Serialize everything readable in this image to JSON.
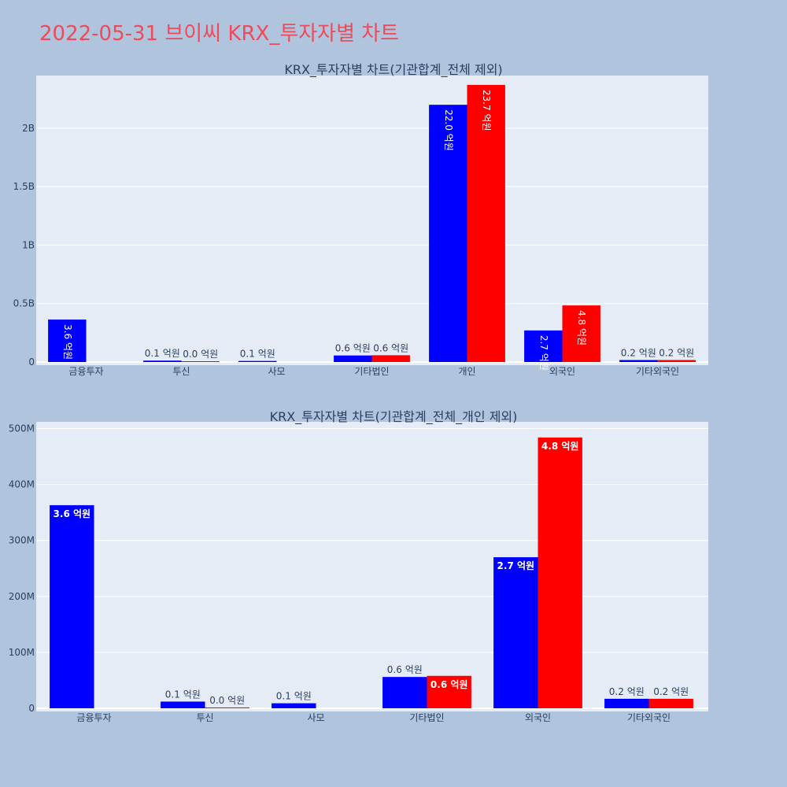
{
  "title": "2022-05-31 브이씨 KRX_투자자별 차트",
  "colors": {
    "buy": "#0000ff",
    "sell": "#ff0000",
    "plot_bg": "#e5ecf6",
    "page_bg": "#b0c4de",
    "title": "#ef4a5a"
  },
  "chart_data": [
    {
      "type": "bar",
      "title": "KRX_투자자별 차트(기관합계_전체 제외)",
      "categories": [
        "금융투자",
        "투신",
        "사모",
        "기타법인",
        "개인",
        "외국인",
        "기타외국인"
      ],
      "ylim": [
        0,
        2450000000
      ],
      "yticks": [
        {
          "value": 0,
          "label": "0"
        },
        {
          "value": 500000000,
          "label": "0.5B"
        },
        {
          "value": 1000000000,
          "label": "1B"
        },
        {
          "value": 1500000000,
          "label": "1.5B"
        },
        {
          "value": 2000000000,
          "label": "2B"
        }
      ],
      "series": [
        {
          "color": "#0000ff",
          "values": [
            363000000,
            12000000,
            9000000,
            56000000,
            2200000000,
            270000000,
            17000000
          ],
          "labels": [
            "3.6 억원",
            "0.1 억원",
            "0.1 억원",
            "0.6 억원",
            "22.0 억원",
            "2.7 억원",
            "0.2 억원"
          ]
        },
        {
          "color": "#ff0000",
          "values": [
            null,
            1500000,
            null,
            58000000,
            2370000000,
            484000000,
            17000000
          ],
          "labels": [
            "",
            "0.0 억원",
            "",
            "0.6 억원",
            "23.7 억원",
            "4.8 억원",
            "0.2 억원"
          ]
        }
      ]
    },
    {
      "type": "bar",
      "title": "KRX_투자자별 차트(기관합계_전체_개인 제외)",
      "categories": [
        "금융투자",
        "투신",
        "사모",
        "기타법인",
        "외국인",
        "기타외국인"
      ],
      "ylim": [
        0,
        512000000
      ],
      "yticks": [
        {
          "value": 0,
          "label": "0"
        },
        {
          "value": 100000000,
          "label": "100M"
        },
        {
          "value": 200000000,
          "label": "200M"
        },
        {
          "value": 300000000,
          "label": "300M"
        },
        {
          "value": 400000000,
          "label": "400M"
        },
        {
          "value": 500000000,
          "label": "500M"
        }
      ],
      "series": [
        {
          "color": "#0000ff",
          "values": [
            363000000,
            12000000,
            9000000,
            56000000,
            270000000,
            17000000
          ],
          "labels": [
            "3.6 억원",
            "0.1 억원",
            "0.1 억원",
            "0.6 억원",
            "2.7 억원",
            "0.2 억원"
          ]
        },
        {
          "color": "#ff0000",
          "values": [
            null,
            1500000,
            null,
            58000000,
            484000000,
            17000000
          ],
          "labels": [
            "",
            "0.0 억원",
            "",
            "0.6 억원",
            "4.8 억원",
            "0.2 억원"
          ]
        }
      ]
    }
  ]
}
